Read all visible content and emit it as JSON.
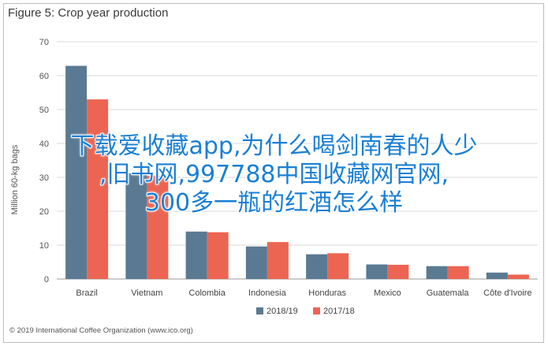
{
  "chart_data": {
    "type": "bar",
    "title": "Figure 5: Crop year production",
    "ylabel": "Million 60-kg bags",
    "xlabel": "",
    "ylim": [
      0,
      70
    ],
    "yticks": [
      0,
      10,
      20,
      30,
      40,
      50,
      60,
      70
    ],
    "grid": true,
    "legend_position": "bottom",
    "categories": [
      "Brazil",
      "Vietnam",
      "Colombia",
      "Indonesia",
      "Honduras",
      "Mexico",
      "Guatemala",
      "Côte d'Ivoire"
    ],
    "series": [
      {
        "name": "2018/19",
        "color": "#5a7a93",
        "values": [
          62.9,
          31.2,
          14.0,
          9.6,
          7.3,
          4.3,
          3.8,
          1.9
        ]
      },
      {
        "name": "2017/18",
        "color": "#ec6552",
        "values": [
          53.0,
          30.5,
          13.8,
          10.9,
          7.6,
          4.2,
          3.8,
          1.3
        ]
      }
    ]
  },
  "source_text": "© 2019 International Coffee Organization (www.ico.org)",
  "overlay_lines": [
    "下载爱收藏app,为什么喝剑南春的人少",
    ",旧书网,997788中国收藏网官网,",
    "300多一瓶的红酒怎么样"
  ]
}
